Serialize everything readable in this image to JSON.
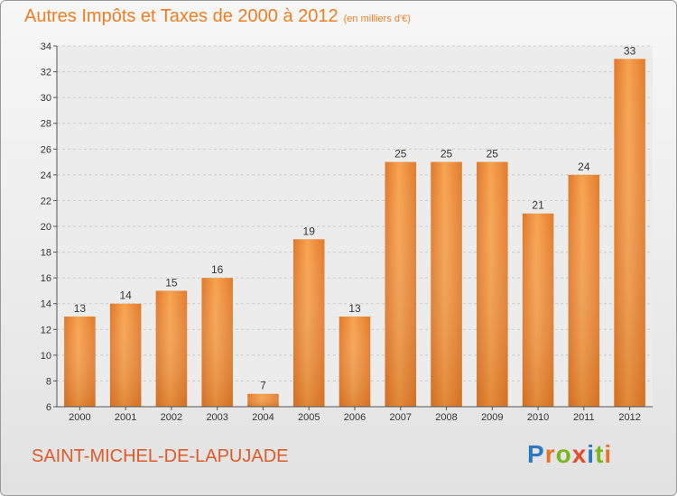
{
  "header": {
    "title": "Autres Impôts et Taxes de 2000 à 2012",
    "subtitle": "(en milliers d'€)"
  },
  "footer": {
    "commune": "SAINT-MICHEL-DE-LAPUJADE",
    "brand": "Proxiti",
    "brand_letters": [
      {
        "char": "P",
        "color": "#2b78c2"
      },
      {
        "char": "r",
        "color": "#e8742b"
      },
      {
        "char": "o",
        "color": "#7ab51d"
      },
      {
        "char": "x",
        "color": "#e54b2a"
      },
      {
        "char": "i",
        "color": "#2b78c2"
      },
      {
        "char": "t",
        "color": "#7ab51d"
      },
      {
        "char": "i",
        "color": "#e8742b"
      }
    ]
  },
  "chart_data": {
    "type": "bar",
    "title": "Autres Impôts et Taxes de 2000 à 2012",
    "subtitle": "(en milliers d'€)",
    "xlabel": "",
    "ylabel": "",
    "categories": [
      "2000",
      "2001",
      "2002",
      "2003",
      "2004",
      "2005",
      "2006",
      "2007",
      "2008",
      "2009",
      "2010",
      "2011",
      "2012"
    ],
    "values": [
      13,
      14,
      15,
      16,
      7,
      19,
      13,
      25,
      25,
      25,
      21,
      24,
      33
    ],
    "ylim": [
      6,
      34
    ],
    "yticks": [
      6,
      8,
      10,
      12,
      14,
      16,
      18,
      20,
      22,
      24,
      26,
      28,
      30,
      32,
      34
    ],
    "grid": true,
    "data_labels": true,
    "bar_color": "#f08a30"
  }
}
